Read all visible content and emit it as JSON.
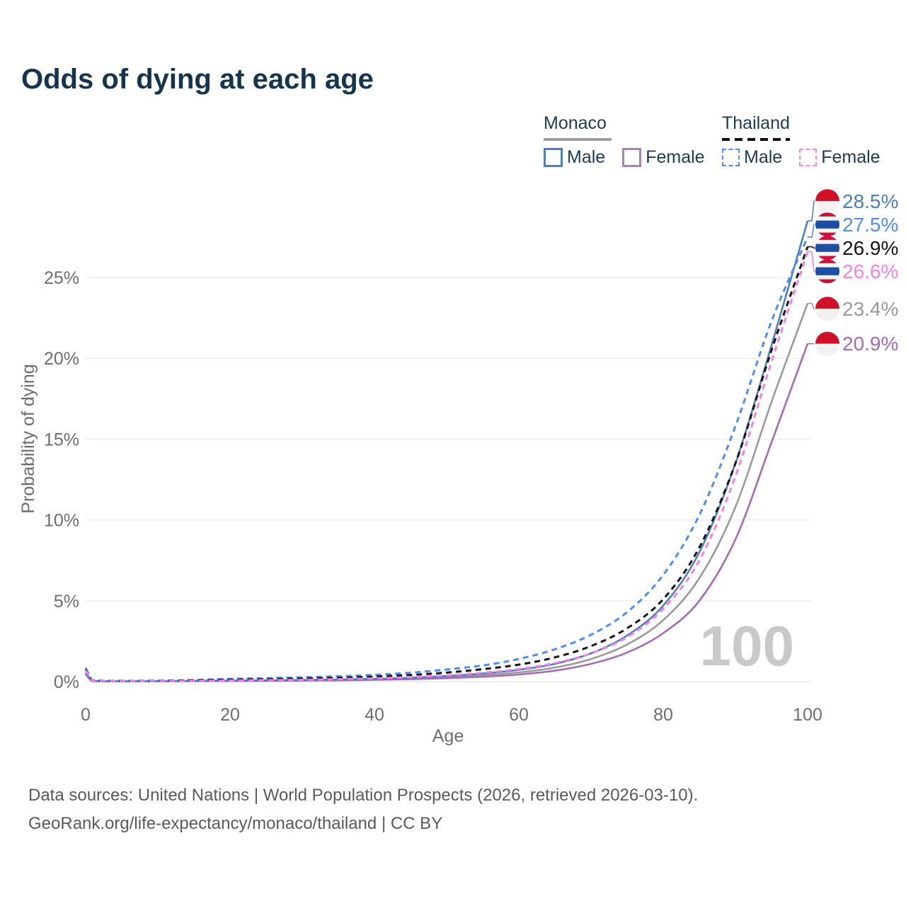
{
  "title": "Odds of dying at each age",
  "legend": {
    "groups": [
      {
        "country": "Monaco",
        "line_style": "solid",
        "items": [
          {
            "label": "Male",
            "color": "#4d7fc0",
            "dashed": false
          },
          {
            "label": "Female",
            "color": "#b47cba",
            "dashed": false
          }
        ]
      },
      {
        "country": "Thailand",
        "line_style": "dashed",
        "items": [
          {
            "label": "Male",
            "color": "#4f8cf7",
            "dashed": true
          },
          {
            "label": "Female",
            "color": "#fa85ec",
            "dashed": true
          }
        ]
      }
    ]
  },
  "chart_data": {
    "type": "line",
    "title": "Odds of dying at each age",
    "xlabel": "Age",
    "ylabel": "Probability of dying",
    "watermark": "100",
    "grid": "horizontal",
    "xlim": [
      0,
      100
    ],
    "ylim_percent": [
      0,
      29
    ],
    "xticks": [
      {
        "value": 0,
        "label": "0"
      },
      {
        "value": 20,
        "label": "20"
      },
      {
        "value": 40,
        "label": "40"
      },
      {
        "value": 60,
        "label": "60"
      },
      {
        "value": 80,
        "label": "80"
      },
      {
        "value": 100,
        "label": "100"
      }
    ],
    "yticks": [
      {
        "value": 0,
        "label": "0%"
      },
      {
        "value": 5,
        "label": "5%"
      },
      {
        "value": 10,
        "label": "10%"
      },
      {
        "value": 15,
        "label": "15%"
      },
      {
        "value": 20,
        "label": "20%"
      },
      {
        "value": 25,
        "label": "25%"
      }
    ],
    "x_age": [
      0,
      1,
      5,
      10,
      15,
      20,
      25,
      30,
      35,
      40,
      45,
      50,
      55,
      60,
      65,
      70,
      75,
      80,
      85,
      90,
      95,
      100
    ],
    "series": [
      {
        "name": "Monaco male",
        "country": "Monaco",
        "sex": "male",
        "color": "#4d7fc0",
        "dashed": false,
        "flag": "monaco",
        "end_label": "28.5%",
        "end_value": 28.5,
        "values": [
          0.55,
          0.04,
          0.02,
          0.02,
          0.04,
          0.06,
          0.08,
          0.1,
          0.13,
          0.17,
          0.24,
          0.34,
          0.5,
          0.73,
          1.1,
          1.75,
          2.85,
          4.7,
          8.0,
          13.5,
          20.8,
          28.5
        ]
      },
      {
        "name": "Thailand male",
        "country": "Thailand",
        "sex": "male",
        "color": "#4f8cf7",
        "dashed": true,
        "flag": "thailand",
        "end_label": "27.5%",
        "end_value": 27.5,
        "values": [
          0.85,
          0.08,
          0.05,
          0.06,
          0.1,
          0.17,
          0.22,
          0.27,
          0.33,
          0.42,
          0.55,
          0.75,
          1.0,
          1.4,
          2.0,
          2.9,
          4.3,
          6.6,
          10.3,
          15.8,
          22.3,
          27.5
        ]
      },
      {
        "name": "Thailand both sexes",
        "country": "Thailand",
        "sex": "both",
        "color": "#151515",
        "dashed": true,
        "flag": "thailand",
        "end_label": "26.9%",
        "end_value": 26.9,
        "values": [
          0.75,
          0.07,
          0.04,
          0.05,
          0.08,
          0.12,
          0.15,
          0.19,
          0.24,
          0.31,
          0.41,
          0.56,
          0.77,
          1.05,
          1.5,
          2.2,
          3.3,
          5.1,
          8.3,
          13.5,
          20.5,
          26.9
        ]
      },
      {
        "name": "Thailand female",
        "country": "Thailand",
        "sex": "female",
        "color": "#f97ee8",
        "dashed": true,
        "flag": "thailand",
        "end_label": "26.6%",
        "end_value": 26.6,
        "values": [
          0.7,
          0.06,
          0.03,
          0.04,
          0.05,
          0.07,
          0.09,
          0.11,
          0.15,
          0.2,
          0.28,
          0.39,
          0.55,
          0.78,
          1.15,
          1.75,
          2.75,
          4.5,
          7.5,
          12.7,
          19.8,
          26.6
        ]
      },
      {
        "name": "Monaco both sexes",
        "country": "Monaco",
        "sex": "both",
        "color": "#9a9a9a",
        "dashed": false,
        "flag": "monaco",
        "end_label": "23.4%",
        "end_value": 23.4,
        "values": [
          0.5,
          0.03,
          0.02,
          0.02,
          0.03,
          0.05,
          0.06,
          0.08,
          0.1,
          0.14,
          0.19,
          0.27,
          0.39,
          0.57,
          0.87,
          1.4,
          2.3,
          3.8,
          6.4,
          10.8,
          17.3,
          23.4
        ]
      },
      {
        "name": "Monaco female",
        "country": "Monaco",
        "sex": "female",
        "color": "#a76ab5",
        "dashed": false,
        "flag": "monaco",
        "end_label": "20.9%",
        "end_value": 20.9,
        "values": [
          0.45,
          0.03,
          0.02,
          0.02,
          0.03,
          0.04,
          0.05,
          0.06,
          0.08,
          0.11,
          0.15,
          0.21,
          0.3,
          0.44,
          0.68,
          1.1,
          1.8,
          3.0,
          5.0,
          8.8,
          14.8,
          20.9
        ]
      }
    ],
    "flag_colors": {
      "monaco": {
        "red": "#ce1126",
        "white": "#f1f1f1"
      },
      "thailand": {
        "red": "#d0103a",
        "white": "#f4f4f4",
        "blue": "#1d4ea3"
      }
    },
    "colors": {
      "title": "#17344f",
      "axis_text": "#6e6e6e",
      "gridline": "#ececec",
      "watermark": "#c9c9c9"
    }
  },
  "footer": {
    "line1": "Data sources: United Nations | World Population Prospects (2026, retrieved 2026-03-10).",
    "line2": "GeoRank.org/life-expectancy/monaco/thailand | CC BY"
  }
}
